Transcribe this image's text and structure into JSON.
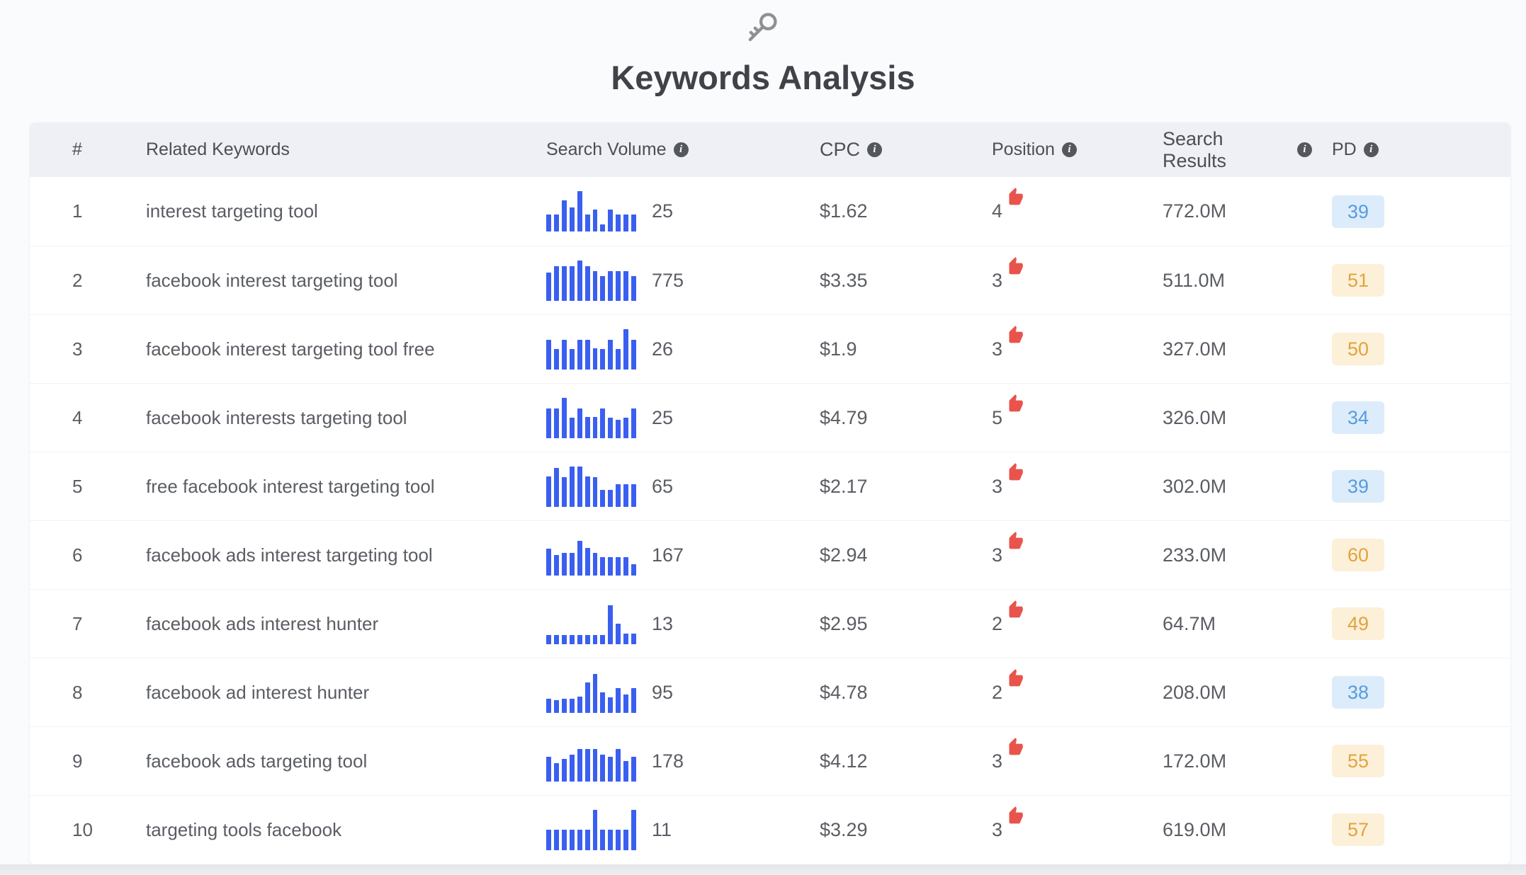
{
  "header": {
    "title": "Keywords Analysis"
  },
  "table": {
    "info_glyph": "i",
    "columns": [
      {
        "key": "rank",
        "label": "#",
        "info": false
      },
      {
        "key": "keyword",
        "label": "Related Keywords",
        "info": false
      },
      {
        "key": "volume",
        "label": "Search Volume",
        "info": true
      },
      {
        "key": "cpc",
        "label": "CPC",
        "info": true
      },
      {
        "key": "position",
        "label": "Position",
        "info": true
      },
      {
        "key": "results",
        "label": "Search Results",
        "info": true
      },
      {
        "key": "pd",
        "label": "PD",
        "info": true
      }
    ],
    "rows": [
      {
        "rank": "1",
        "keyword": "interest targeting tool",
        "volume": "25",
        "trend": [
          0.42,
          0.42,
          0.78,
          0.6,
          1.0,
          0.42,
          0.55,
          0.18,
          0.55,
          0.42,
          0.42,
          0.42
        ],
        "cpc": "$1.62",
        "position": "4",
        "results": "772.0M",
        "pd": "39",
        "pd_level": "blue"
      },
      {
        "rank": "2",
        "keyword": "facebook interest targeting tool",
        "volume": "775",
        "trend": [
          0.7,
          0.85,
          0.85,
          0.85,
          1.0,
          0.85,
          0.72,
          0.6,
          0.72,
          0.72,
          0.72,
          0.6
        ],
        "cpc": "$3.35",
        "position": "3",
        "results": "511.0M",
        "pd": "51",
        "pd_level": "orange"
      },
      {
        "rank": "3",
        "keyword": "facebook interest targeting tool free",
        "volume": "26",
        "trend": [
          0.72,
          0.5,
          0.72,
          0.5,
          0.72,
          0.72,
          0.52,
          0.5,
          0.72,
          0.5,
          1.0,
          0.72
        ],
        "cpc": "$1.9",
        "position": "3",
        "results": "327.0M",
        "pd": "50",
        "pd_level": "orange"
      },
      {
        "rank": "4",
        "keyword": "facebook interests targeting tool",
        "volume": "25",
        "trend": [
          0.72,
          0.72,
          1.0,
          0.5,
          0.72,
          0.52,
          0.52,
          0.72,
          0.5,
          0.45,
          0.5,
          0.72
        ],
        "cpc": "$4.79",
        "position": "5",
        "results": "326.0M",
        "pd": "34",
        "pd_level": "blue"
      },
      {
        "rank": "5",
        "keyword": "free facebook interest targeting tool",
        "volume": "65",
        "trend": [
          0.75,
          0.95,
          0.72,
          1.0,
          1.0,
          0.75,
          0.72,
          0.42,
          0.42,
          0.55,
          0.55,
          0.55
        ],
        "cpc": "$2.17",
        "position": "3",
        "results": "302.0M",
        "pd": "39",
        "pd_level": "blue"
      },
      {
        "rank": "6",
        "keyword": "facebook ads interest targeting tool",
        "volume": "167",
        "trend": [
          0.65,
          0.5,
          0.55,
          0.55,
          0.85,
          0.68,
          0.55,
          0.45,
          0.45,
          0.45,
          0.45,
          0.28
        ],
        "cpc": "$2.94",
        "position": "3",
        "results": "233.0M",
        "pd": "60",
        "pd_level": "orange"
      },
      {
        "rank": "7",
        "keyword": "facebook ads interest hunter",
        "volume": "13",
        "trend": [
          0.22,
          0.22,
          0.22,
          0.22,
          0.22,
          0.22,
          0.22,
          0.22,
          0.95,
          0.5,
          0.25,
          0.25
        ],
        "cpc": "$2.95",
        "position": "2",
        "results": "64.7M",
        "pd": "49",
        "pd_level": "orange"
      },
      {
        "rank": "8",
        "keyword": "facebook ad interest hunter",
        "volume": "95",
        "trend": [
          0.35,
          0.3,
          0.35,
          0.35,
          0.4,
          0.75,
          0.95,
          0.5,
          0.38,
          0.6,
          0.45,
          0.6
        ],
        "cpc": "$4.78",
        "position": "2",
        "results": "208.0M",
        "pd": "38",
        "pd_level": "blue"
      },
      {
        "rank": "9",
        "keyword": "facebook ads targeting tool",
        "volume": "178",
        "trend": [
          0.6,
          0.45,
          0.55,
          0.65,
          0.8,
          0.8,
          0.8,
          0.65,
          0.6,
          0.8,
          0.5,
          0.6
        ],
        "cpc": "$4.12",
        "position": "3",
        "results": "172.0M",
        "pd": "55",
        "pd_level": "orange"
      },
      {
        "rank": "10",
        "keyword": "targeting tools facebook",
        "volume": "11",
        "trend": [
          0.5,
          0.5,
          0.5,
          0.5,
          0.5,
          0.5,
          1.0,
          0.5,
          0.5,
          0.5,
          0.5,
          1.0
        ],
        "cpc": "$3.29",
        "position": "3",
        "results": "619.0M",
        "pd": "57",
        "pd_level": "orange"
      }
    ]
  },
  "colors": {
    "accent_blue": "#3a5ff0",
    "thumb_red": "#e8544c",
    "pd_blue_bg": "#ddecfa",
    "pd_blue_text": "#569cdf",
    "pd_orange_bg": "#fcf0d9",
    "pd_orange_text": "#e2a33c",
    "header_bg": "#eef0f5"
  }
}
